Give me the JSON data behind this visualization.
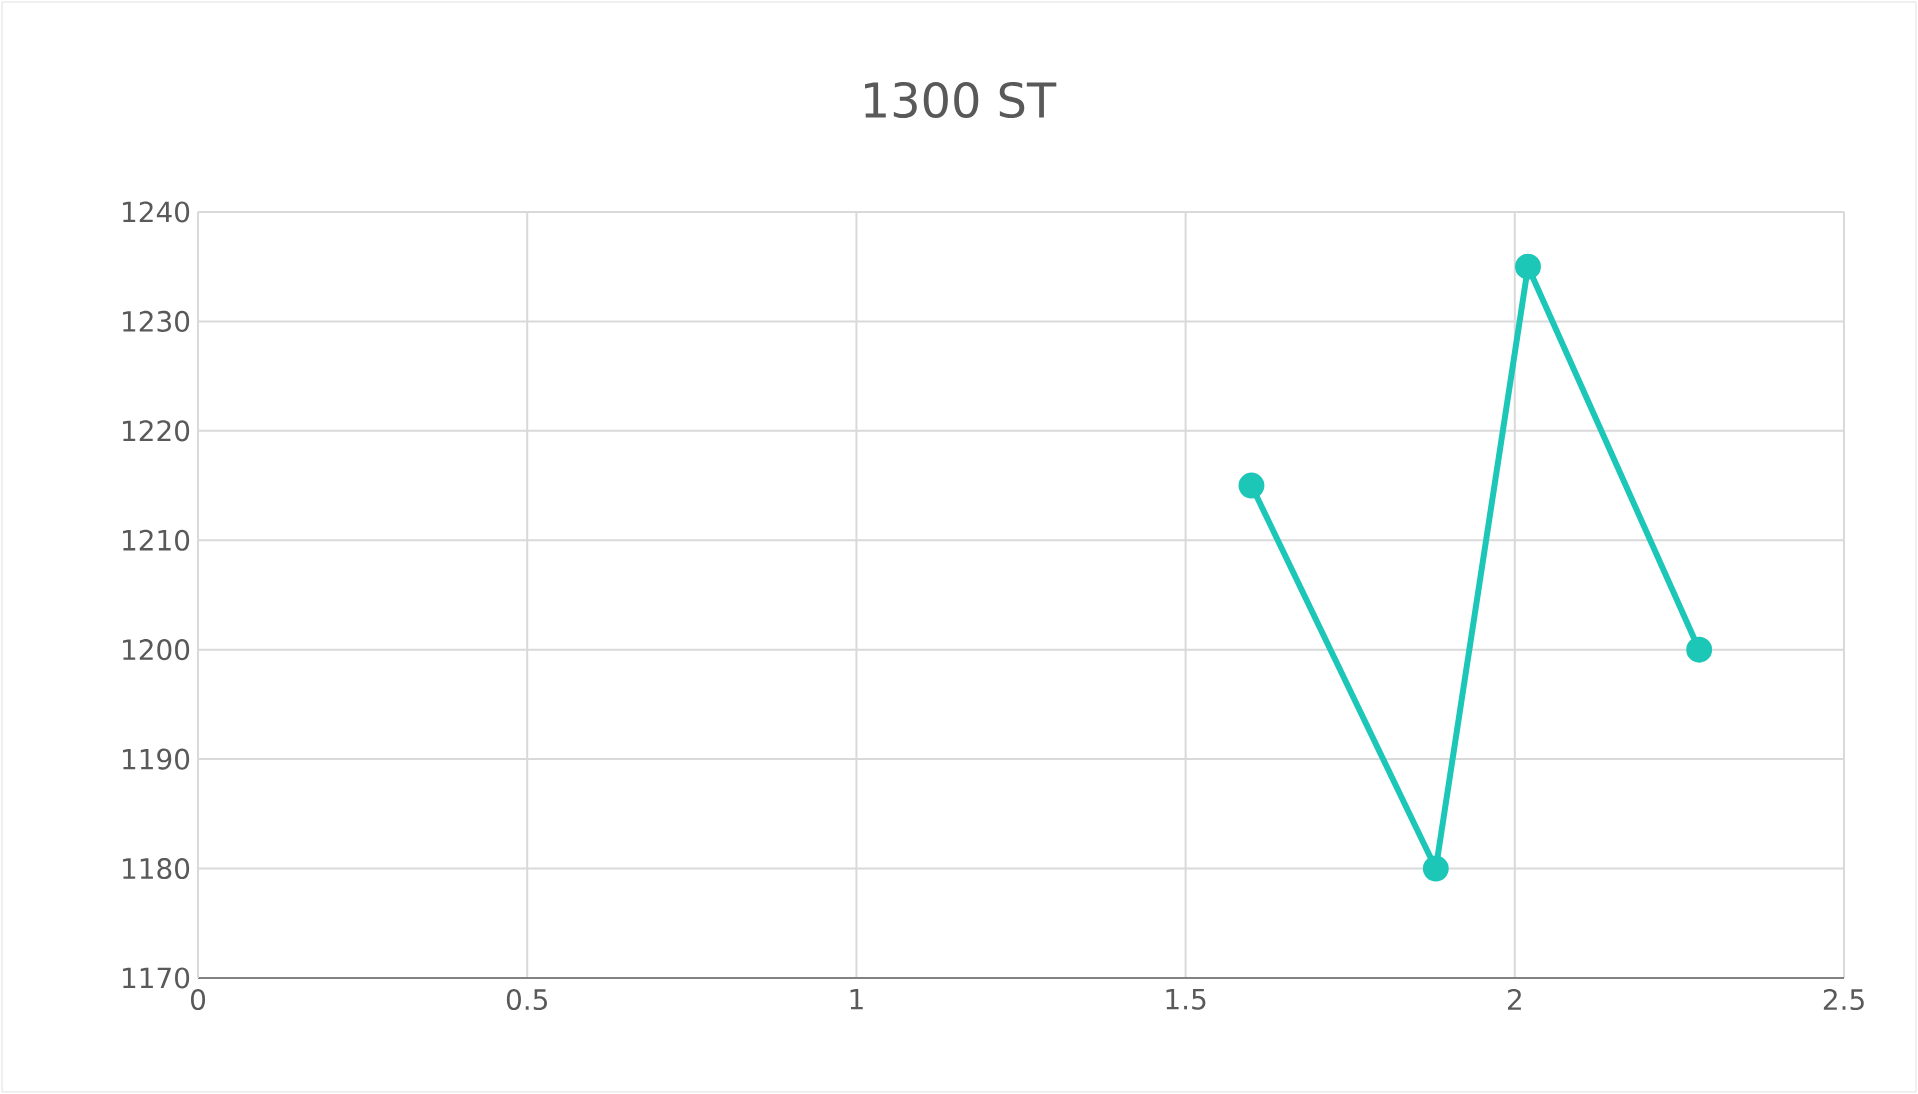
{
  "chart_data": {
    "type": "line",
    "title": "1300 ST",
    "x": [
      1.6,
      1.88,
      2.02,
      2.28
    ],
    "values": [
      1215,
      1180,
      1235,
      1200
    ],
    "color": "#1dc7b8",
    "marker": "circle",
    "line_style": "solid",
    "xlim": [
      0,
      2.5
    ],
    "xticks": [
      0,
      0.5,
      1,
      1.5,
      2,
      2.5
    ],
    "ylim": [
      1170,
      1240
    ],
    "yticks": [
      1170,
      1180,
      1190,
      1200,
      1210,
      1220,
      1230,
      1240
    ],
    "grid": true
  }
}
